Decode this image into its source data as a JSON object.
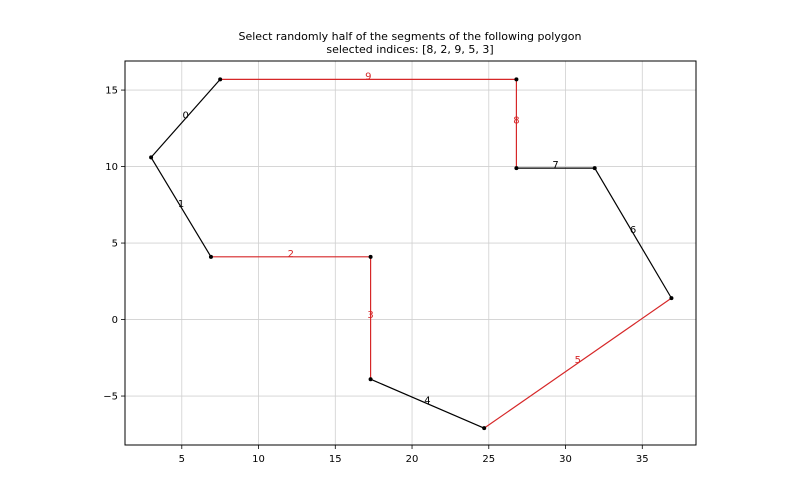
{
  "chart_data": {
    "type": "line",
    "title": "Select randomly half of the segments of the following polygon",
    "subtitle": "selected indices: [8, 2, 9, 5, 3]",
    "xlabel": "",
    "ylabel": "",
    "xlim": [
      1.3,
      38.5
    ],
    "ylim": [
      -8.2,
      16.9
    ],
    "grid": true,
    "x_ticks": [
      5,
      10,
      15,
      20,
      25,
      30,
      35
    ],
    "y_ticks": [
      15,
      10,
      5,
      0,
      -5
    ],
    "y_tick_labels": [
      "15",
      "10",
      "5",
      "0",
      "−5"
    ],
    "vertices": [
      [
        7.5,
        15.7
      ],
      [
        3.0,
        10.6
      ],
      [
        6.9,
        4.1
      ],
      [
        17.3,
        4.1
      ],
      [
        17.3,
        -3.9
      ],
      [
        24.7,
        -7.1
      ],
      [
        36.9,
        1.4
      ],
      [
        31.9,
        9.9
      ],
      [
        26.8,
        9.9
      ],
      [
        26.8,
        15.7
      ]
    ],
    "segment_labels": [
      "0",
      "1",
      "2",
      "3",
      "4",
      "5",
      "6",
      "7",
      "8",
      "9"
    ],
    "selected_indices": [
      8,
      2,
      9,
      5,
      3
    ],
    "colors": {
      "selected": "#d62728",
      "normal": "#000000",
      "vertex": "#000000"
    }
  }
}
